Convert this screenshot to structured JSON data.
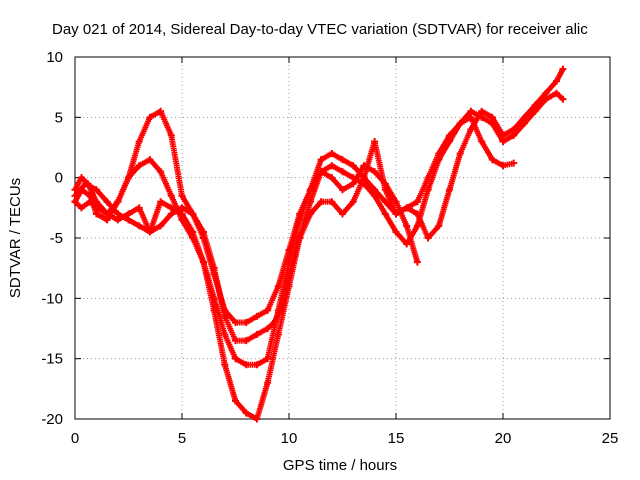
{
  "chart_data": {
    "type": "scatter",
    "title": "Day 021 of 2014, Sidereal Day-to-day VTEC variation (SDTVAR) for receiver alic",
    "xlabel": "GPS time / hours",
    "ylabel": "SDTVAR / TECUs",
    "xlim": [
      0,
      25
    ],
    "ylim": [
      -20,
      10
    ],
    "xticks": [
      "0",
      "5",
      "10",
      "15",
      "20",
      "25"
    ],
    "yticks": [
      "-20",
      "-15",
      "-10",
      "-5",
      "0",
      "5",
      "10"
    ],
    "grid": true,
    "marker": "+",
    "series": [
      {
        "color": "#ff0000",
        "x": [
          0.0,
          0.3,
          0.6,
          1.0,
          1.5,
          2.0,
          2.5,
          3.0,
          3.5,
          4.0,
          4.5,
          5.0,
          5.5,
          6.0,
          6.5,
          7.0,
          7.5,
          8.0,
          8.5,
          9.0,
          9.5,
          10.0,
          10.5,
          11.0,
          11.5,
          12.0,
          12.5,
          13.0,
          13.5,
          14.0,
          14.5,
          15.0,
          15.5,
          16.0,
          16.5,
          17.0,
          17.5,
          18.0,
          18.5,
          19.0,
          19.5,
          20.0,
          20.5,
          21.0,
          21.5,
          22.0,
          22.5,
          22.8
        ],
        "y": [
          -1.0,
          0.0,
          -0.5,
          -2.0,
          -3.0,
          -2.0,
          0.0,
          3.0,
          5.0,
          5.5,
          3.5,
          -1.5,
          -3.0,
          -5.0,
          -8.0,
          -11.0,
          -12.0,
          -12.0,
          -11.5,
          -11.0,
          -9.0,
          -6.0,
          -3.0,
          -1.0,
          1.5,
          2.0,
          1.5,
          1.0,
          0.0,
          -1.0,
          -2.0,
          -3.0,
          -2.5,
          -2.0,
          0.0,
          2.0,
          3.5,
          4.5,
          5.5,
          5.0,
          4.5,
          3.0,
          3.5,
          4.5,
          5.5,
          6.5,
          7.0,
          6.5
        ]
      },
      {
        "color": "#ff0000",
        "x": [
          0.0,
          0.3,
          0.7,
          1.0,
          1.5,
          2.0,
          2.5,
          3.0,
          3.5,
          4.0,
          4.5,
          5.0,
          5.5,
          6.0,
          6.5,
          7.0,
          7.5,
          8.0,
          8.5,
          9.0,
          9.5,
          10.0,
          10.5,
          11.0,
          11.5,
          12.0,
          12.5,
          13.0,
          13.5,
          14.0,
          14.5,
          15.0,
          15.5,
          16.0,
          16.5,
          17.0,
          17.5,
          18.0,
          18.5,
          19.0,
          19.5,
          20.0,
          20.5
        ],
        "y": [
          -2.0,
          -1.0,
          -1.5,
          -3.0,
          -3.5,
          -2.0,
          0.0,
          1.0,
          1.5,
          0.5,
          -1.5,
          -3.5,
          -5.0,
          -7.0,
          -10.0,
          -13.0,
          -15.0,
          -15.5,
          -15.5,
          -15.0,
          -11.0,
          -7.0,
          -3.5,
          -1.0,
          0.5,
          1.0,
          0.5,
          0.0,
          -0.5,
          -1.5,
          -3.0,
          -4.5,
          -5.5,
          -4.0,
          -1.0,
          1.5,
          3.0,
          4.5,
          5.0,
          3.0,
          1.5,
          1.0,
          1.2
        ]
      },
      {
        "color": "#ff0000",
        "x": [
          0.0,
          0.3,
          0.7,
          1.0,
          1.5,
          2.0,
          2.5,
          3.0,
          3.5,
          4.0,
          4.5,
          5.0,
          5.5,
          6.0,
          6.5,
          7.0,
          7.5,
          8.0,
          8.5,
          9.0,
          9.5,
          10.0,
          10.5,
          11.0,
          11.5,
          12.0,
          12.5,
          13.0,
          13.5,
          14.0,
          14.5,
          15.0,
          15.5,
          16.0
        ],
        "y": [
          -2.0,
          -2.5,
          -2.0,
          -2.5,
          -3.0,
          -3.5,
          -3.0,
          -2.5,
          -4.5,
          -2.0,
          -2.5,
          -3.0,
          -4.5,
          -7.0,
          -11.0,
          -15.5,
          -18.5,
          -19.5,
          -20.0,
          -17.0,
          -13.0,
          -9.0,
          -5.0,
          -2.0,
          0.5,
          0.0,
          -1.0,
          -0.5,
          1.0,
          0.5,
          -0.5,
          -2.0,
          -4.0,
          -7.0
        ]
      },
      {
        "color": "#ff0000",
        "x": [
          0.0,
          0.5,
          1.0,
          1.5,
          2.0,
          2.5,
          3.0,
          3.5,
          4.0,
          4.5,
          5.0,
          5.5,
          6.0,
          6.5,
          7.0,
          7.5,
          8.0,
          8.5,
          9.0,
          9.3,
          9.6,
          10.0,
          10.5,
          11.0,
          11.5,
          12.0,
          12.5,
          13.0,
          13.5,
          14.0,
          14.5,
          15.0,
          15.5,
          16.0,
          16.5,
          17.0,
          17.5,
          18.0,
          18.5,
          19.0,
          19.5,
          20.0,
          20.5,
          21.0,
          21.5,
          22.0,
          22.5,
          22.8
        ],
        "y": [
          -1.5,
          -0.5,
          -1.0,
          -2.0,
          -3.0,
          -3.5,
          -4.0,
          -4.5,
          -4.0,
          -3.0,
          -2.5,
          -3.0,
          -4.5,
          -7.5,
          -11.5,
          -13.5,
          -13.5,
          -13.0,
          -12.5,
          -12.0,
          -11.0,
          -8.0,
          -5.0,
          -3.0,
          -2.0,
          -2.0,
          -3.0,
          -2.0,
          0.0,
          3.0,
          -1.0,
          -3.0,
          -2.5,
          -3.0,
          -5.0,
          -4.0,
          -1.0,
          2.0,
          4.0,
          5.5,
          5.0,
          3.5,
          4.0,
          5.0,
          6.0,
          7.0,
          8.0,
          9.0
        ]
      }
    ]
  }
}
